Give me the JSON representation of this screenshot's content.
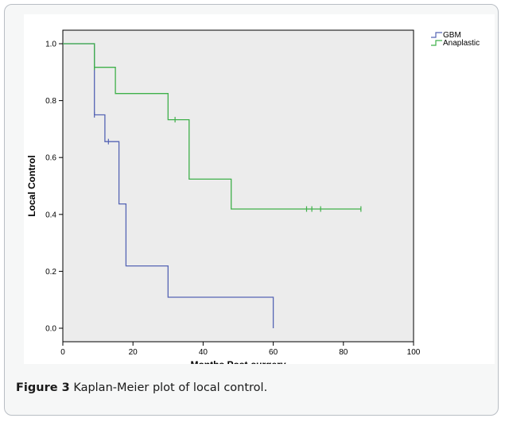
{
  "caption": {
    "figure_label": "Figure 3",
    "text": "Kaplan-Meier plot of local control",
    "period": "."
  },
  "chart_data": {
    "type": "line",
    "title": "",
    "xlabel": "Months Post-surgery",
    "ylabel": "Local Control",
    "xlim": [
      0,
      100
    ],
    "ylim": [
      0,
      1.0
    ],
    "xticks": [
      "0",
      "20",
      "40",
      "60",
      "80",
      "100"
    ],
    "yticks": [
      "0.0",
      "0.2",
      "0.4",
      "0.6",
      "0.8",
      "1.0"
    ],
    "grid": false,
    "legend_position": "top-right",
    "series": [
      {
        "name": "GBM",
        "color": "#5564b4",
        "step": [
          [
            0,
            1.0
          ],
          [
            9,
            1.0
          ],
          [
            9,
            0.75
          ],
          [
            12,
            0.75
          ],
          [
            12,
            0.656
          ],
          [
            16,
            0.656
          ],
          [
            16,
            0.437
          ],
          [
            18,
            0.437
          ],
          [
            18,
            0.219
          ],
          [
            30,
            0.219
          ],
          [
            30,
            0.109
          ],
          [
            60,
            0.109
          ],
          [
            60,
            0.0
          ]
        ],
        "censored": [
          [
            9,
            0.75
          ],
          [
            13,
            0.656
          ]
        ]
      },
      {
        "name": "Anaplastic",
        "color": "#3fb04a",
        "step": [
          [
            0,
            1.0
          ],
          [
            9,
            1.0
          ],
          [
            9,
            0.917
          ],
          [
            15,
            0.917
          ],
          [
            15,
            0.825
          ],
          [
            30,
            0.825
          ],
          [
            30,
            0.733
          ],
          [
            36,
            0.733
          ],
          [
            36,
            0.524
          ],
          [
            48,
            0.524
          ],
          [
            48,
            0.419
          ],
          [
            85,
            0.419
          ]
        ],
        "censored": [
          [
            9,
            0.917
          ],
          [
            32,
            0.733
          ],
          [
            69.5,
            0.419
          ],
          [
            71,
            0.419
          ],
          [
            73.5,
            0.419
          ],
          [
            85,
            0.419
          ]
        ]
      }
    ]
  }
}
